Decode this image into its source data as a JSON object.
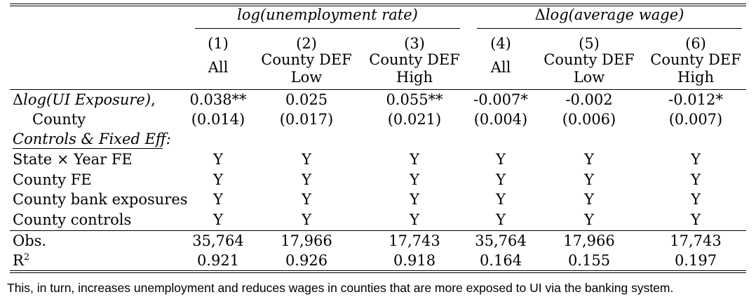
{
  "table": {
    "group_headers": [
      {
        "prefix": "",
        "label": "log(unemployment rate)"
      },
      {
        "prefix": "Δ",
        "label": "log(average wage)"
      }
    ],
    "columns": [
      {
        "num": "(1)",
        "line1": "All",
        "line2": ""
      },
      {
        "num": "(2)",
        "line1": "County DEF",
        "line2": "Low"
      },
      {
        "num": "(3)",
        "line1": "County DEF",
        "line2": "High"
      },
      {
        "num": "(4)",
        "line1": "All",
        "line2": ""
      },
      {
        "num": "(5)",
        "line1": "County DEF",
        "line2": "Low"
      },
      {
        "num": "(6)",
        "line1": "County DEF",
        "line2": "High"
      }
    ],
    "main_row": {
      "label_line1_prefix": "Δ",
      "label_line1_italic": "log(UI Exposure)",
      "label_line1_suffix": ",",
      "label_line2": "County",
      "coefficients": [
        "0.038**",
        "0.025",
        "0.055**",
        "-0.007*",
        "-0.002",
        "-0.012*"
      ],
      "std_errors": [
        "(0.014)",
        "(0.017)",
        "(0.021)",
        "(0.004)",
        "(0.006)",
        "(0.007)"
      ]
    },
    "controls_heading": "Controls & Fixed Eff:",
    "control_rows": [
      {
        "label": "State × Year FE",
        "values": [
          "Y",
          "Y",
          "Y",
          "Y",
          "Y",
          "Y"
        ]
      },
      {
        "label": "County FE",
        "values": [
          "Y",
          "Y",
          "Y",
          "Y",
          "Y",
          "Y"
        ]
      },
      {
        "label": "County bank exposures",
        "values": [
          "Y",
          "Y",
          "Y",
          "Y",
          "Y",
          "Y"
        ]
      },
      {
        "label": "County controls",
        "values": [
          "Y",
          "Y",
          "Y",
          "Y",
          "Y",
          "Y"
        ]
      }
    ],
    "obs_row": {
      "label": "Obs.",
      "values": [
        "35,764",
        "17,966",
        "17,743",
        "35,764",
        "17,966",
        "17,743"
      ]
    },
    "r2_row": {
      "label_base": "R",
      "label_sup": "2",
      "values": [
        "0.921",
        "0.926",
        "0.918",
        "0.164",
        "0.155",
        "0.197"
      ]
    }
  },
  "caption": "This, in turn, increases unemployment and reduces wages in counties that are more exposed to UI via the banking system."
}
